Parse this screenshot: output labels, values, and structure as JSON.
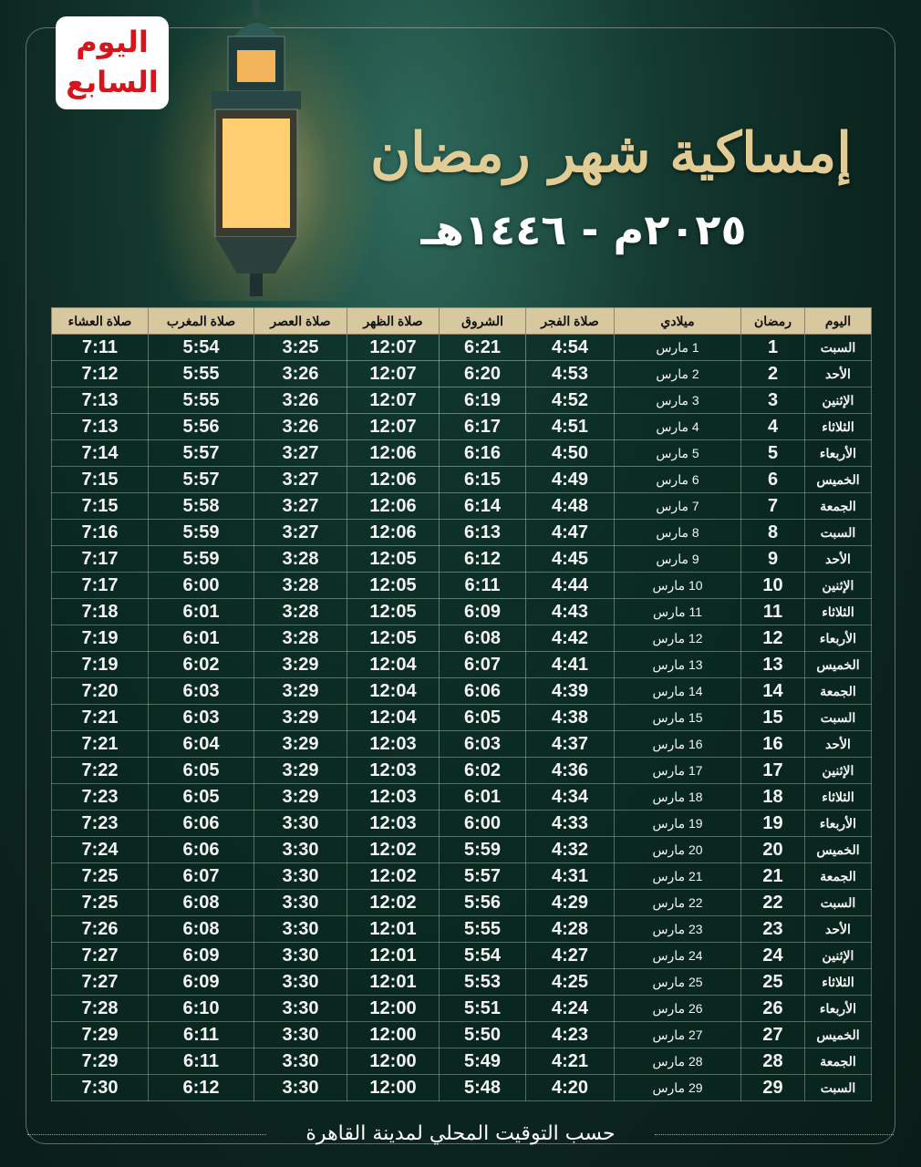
{
  "logo": {
    "line1": "اليوم",
    "line2": "السابع"
  },
  "title": "إمساكية شهر رمضان",
  "subtitle": "٢٠٢٥م - ١٤٤٦هـ",
  "colors": {
    "header_bg": "#d8c89f",
    "title_gold": "#e2cc95",
    "logo_red": "#d7141c",
    "row_bg": "#0c2c24"
  },
  "table": {
    "headers": [
      "اليوم",
      "رمضان",
      "ميلادي",
      "صلاة الفجر",
      "الشروق",
      "صلاة الظهر",
      "صلاة العصر",
      "صلاة المغرب",
      "صلاة العشاء"
    ],
    "rows": [
      [
        "السبت",
        "1",
        "1 مارس",
        "4:54",
        "6:21",
        "12:07",
        "3:25",
        "5:54",
        "7:11"
      ],
      [
        "الأحد",
        "2",
        "2 مارس",
        "4:53",
        "6:20",
        "12:07",
        "3:26",
        "5:55",
        "7:12"
      ],
      [
        "الإثنين",
        "3",
        "3 مارس",
        "4:52",
        "6:19",
        "12:07",
        "3:26",
        "5:55",
        "7:13"
      ],
      [
        "الثلاثاء",
        "4",
        "4 مارس",
        "4:51",
        "6:17",
        "12:07",
        "3:26",
        "5:56",
        "7:13"
      ],
      [
        "الأربعاء",
        "5",
        "5 مارس",
        "4:50",
        "6:16",
        "12:06",
        "3:27",
        "5:57",
        "7:14"
      ],
      [
        "الخميس",
        "6",
        "6 مارس",
        "4:49",
        "6:15",
        "12:06",
        "3:27",
        "5:57",
        "7:15"
      ],
      [
        "الجمعة",
        "7",
        "7 مارس",
        "4:48",
        "6:14",
        "12:06",
        "3:27",
        "5:58",
        "7:15"
      ],
      [
        "السبت",
        "8",
        "8 مارس",
        "4:47",
        "6:13",
        "12:06",
        "3:27",
        "5:59",
        "7:16"
      ],
      [
        "الأحد",
        "9",
        "9 مارس",
        "4:45",
        "6:12",
        "12:05",
        "3:28",
        "5:59",
        "7:17"
      ],
      [
        "الإثنين",
        "10",
        "10 مارس",
        "4:44",
        "6:11",
        "12:05",
        "3:28",
        "6:00",
        "7:17"
      ],
      [
        "الثلاثاء",
        "11",
        "11 مارس",
        "4:43",
        "6:09",
        "12:05",
        "3:28",
        "6:01",
        "7:18"
      ],
      [
        "الأربعاء",
        "12",
        "12 مارس",
        "4:42",
        "6:08",
        "12:05",
        "3:28",
        "6:01",
        "7:19"
      ],
      [
        "الخميس",
        "13",
        "13 مارس",
        "4:41",
        "6:07",
        "12:04",
        "3:29",
        "6:02",
        "7:19"
      ],
      [
        "الجمعة",
        "14",
        "14 مارس",
        "4:39",
        "6:06",
        "12:04",
        "3:29",
        "6:03",
        "7:20"
      ],
      [
        "السبت",
        "15",
        "15 مارس",
        "4:38",
        "6:05",
        "12:04",
        "3:29",
        "6:03",
        "7:21"
      ],
      [
        "الأحد",
        "16",
        "16 مارس",
        "4:37",
        "6:03",
        "12:03",
        "3:29",
        "6:04",
        "7:21"
      ],
      [
        "الإثنين",
        "17",
        "17 مارس",
        "4:36",
        "6:02",
        "12:03",
        "3:29",
        "6:05",
        "7:22"
      ],
      [
        "الثلاثاء",
        "18",
        "18 مارس",
        "4:34",
        "6:01",
        "12:03",
        "3:29",
        "6:05",
        "7:23"
      ],
      [
        "الأربعاء",
        "19",
        "19 مارس",
        "4:33",
        "6:00",
        "12:03",
        "3:30",
        "6:06",
        "7:23"
      ],
      [
        "الخميس",
        "20",
        "20 مارس",
        "4:32",
        "5:59",
        "12:02",
        "3:30",
        "6:06",
        "7:24"
      ],
      [
        "الجمعة",
        "21",
        "21 مارس",
        "4:31",
        "5:57",
        "12:02",
        "3:30",
        "6:07",
        "7:25"
      ],
      [
        "السبت",
        "22",
        "22 مارس",
        "4:29",
        "5:56",
        "12:02",
        "3:30",
        "6:08",
        "7:25"
      ],
      [
        "الأحد",
        "23",
        "23 مارس",
        "4:28",
        "5:55",
        "12:01",
        "3:30",
        "6:08",
        "7:26"
      ],
      [
        "الإثنين",
        "24",
        "24 مارس",
        "4:27",
        "5:54",
        "12:01",
        "3:30",
        "6:09",
        "7:27"
      ],
      [
        "الثلاثاء",
        "25",
        "25 مارس",
        "4:25",
        "5:53",
        "12:01",
        "3:30",
        "6:09",
        "7:27"
      ],
      [
        "الأربعاء",
        "26",
        "26 مارس",
        "4:24",
        "5:51",
        "12:00",
        "3:30",
        "6:10",
        "7:28"
      ],
      [
        "الخميس",
        "27",
        "27 مارس",
        "4:23",
        "5:50",
        "12:00",
        "3:30",
        "6:11",
        "7:29"
      ],
      [
        "الجمعة",
        "28",
        "28 مارس",
        "4:21",
        "5:49",
        "12:00",
        "3:30",
        "6:11",
        "7:29"
      ],
      [
        "السبت",
        "29",
        "29 مارس",
        "4:20",
        "5:48",
        "12:00",
        "3:30",
        "6:12",
        "7:30"
      ]
    ]
  },
  "footer": "حسب التوقيت المحلي لمدينة القاهرة"
}
